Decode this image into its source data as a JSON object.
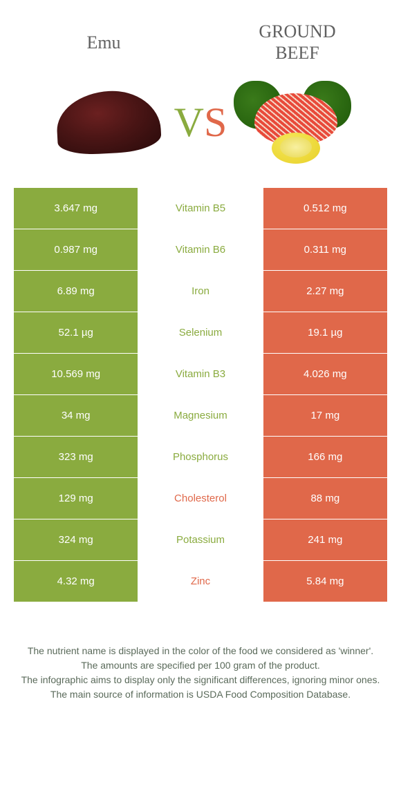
{
  "header": {
    "left_title": "Emu",
    "right_title_line1": "GROUND",
    "right_title_line2": "BEEF",
    "vs_v": "V",
    "vs_s": "S"
  },
  "colors": {
    "left": "#8aab3f",
    "right": "#e0684a",
    "text": "#5a6a5a"
  },
  "rows": [
    {
      "nutrient": "Vitamin B5",
      "left": "3.647 mg",
      "right": "0.512 mg",
      "winner": "left"
    },
    {
      "nutrient": "Vitamin B6",
      "left": "0.987 mg",
      "right": "0.311 mg",
      "winner": "left"
    },
    {
      "nutrient": "Iron",
      "left": "6.89 mg",
      "right": "2.27 mg",
      "winner": "left"
    },
    {
      "nutrient": "Selenium",
      "left": "52.1 µg",
      "right": "19.1 µg",
      "winner": "left"
    },
    {
      "nutrient": "Vitamin B3",
      "left": "10.569 mg",
      "right": "4.026 mg",
      "winner": "left"
    },
    {
      "nutrient": "Magnesium",
      "left": "34 mg",
      "right": "17 mg",
      "winner": "left"
    },
    {
      "nutrient": "Phosphorus",
      "left": "323 mg",
      "right": "166 mg",
      "winner": "left"
    },
    {
      "nutrient": "Cholesterol",
      "left": "129 mg",
      "right": "88 mg",
      "winner": "right"
    },
    {
      "nutrient": "Potassium",
      "left": "324 mg",
      "right": "241 mg",
      "winner": "left"
    },
    {
      "nutrient": "Zinc",
      "left": "4.32 mg",
      "right": "5.84 mg",
      "winner": "right"
    }
  ],
  "footnotes": [
    "The nutrient name is displayed in the color of the food we considered as 'winner'.",
    "The amounts are specified per 100 gram of the product.",
    "The infographic aims to display only the significant differences, ignoring minor ones.",
    "The main source of information is USDA Food Composition Database."
  ]
}
